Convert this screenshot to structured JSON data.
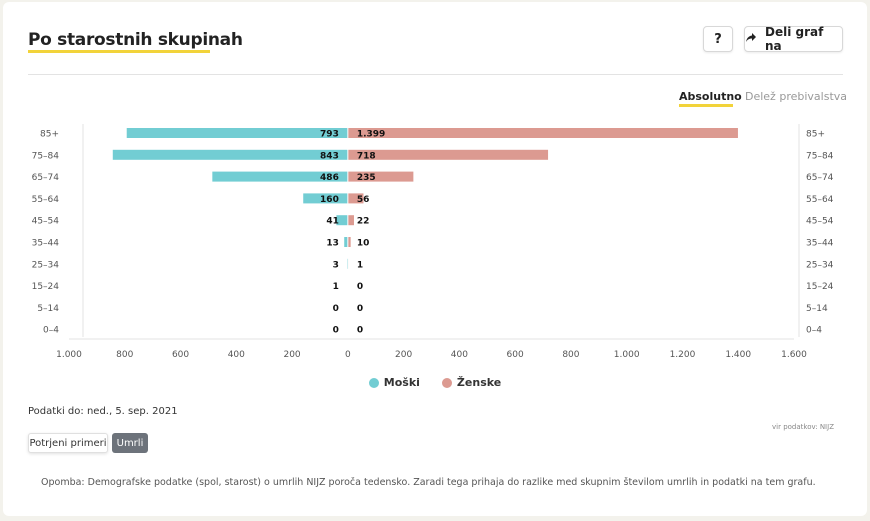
{
  "title": "Po starostnih skupinah",
  "buttons": {
    "help": "?",
    "share": "Deli graf na"
  },
  "view_toggle": {
    "absolute": "Absolutno",
    "share": "Delež prebivalstva"
  },
  "colors": {
    "male": "#72cdd3",
    "female": "#dc9a91",
    "accent": "#f2d33a",
    "tab_active": "#6d737b"
  },
  "icons": {
    "share": "share-arrow-icon"
  },
  "chart_data": {
    "type": "bar",
    "orientation": "horizontal-diverging",
    "categories": [
      "85+",
      "75–84",
      "65–74",
      "55–64",
      "45–54",
      "35–44",
      "25–34",
      "15–24",
      "5–14",
      "0–4"
    ],
    "series": [
      {
        "name": "Moški",
        "values": [
          793,
          843,
          486,
          160,
          41,
          13,
          3,
          1,
          0,
          0
        ],
        "labels": [
          "793",
          "843",
          "486",
          "160",
          "41",
          "13",
          "3",
          "1",
          "0",
          "0"
        ]
      },
      {
        "name": "Ženske",
        "values": [
          1399,
          718,
          235,
          56,
          22,
          10,
          1,
          0,
          0,
          0
        ],
        "labels": [
          "1.399",
          "718",
          "235",
          "56",
          "22",
          "10",
          "1",
          "0",
          "0",
          "0"
        ]
      }
    ],
    "x_ticks": [
      "1.000",
      "800",
      "600",
      "400",
      "200",
      "0",
      "200",
      "400",
      "600",
      "800",
      "1.000",
      "1.200",
      "1.400",
      "1.600"
    ],
    "xlim": [
      -1000,
      1600
    ],
    "grid": false,
    "legend_position": "bottom-center"
  },
  "data_date": "Podatki do: ned., 5. sep. 2021",
  "source": "vir podatkov: NIJZ",
  "tabs": {
    "confirmed": "Potrjeni primeri",
    "deaths": "Umrli"
  },
  "note": "Opomba: Demografske podatke (spol, starost) o umrlih NIJZ poroča tedensko. Zaradi tega prihaja do razlike med skupnim številom umrlih in podatki na tem grafu."
}
